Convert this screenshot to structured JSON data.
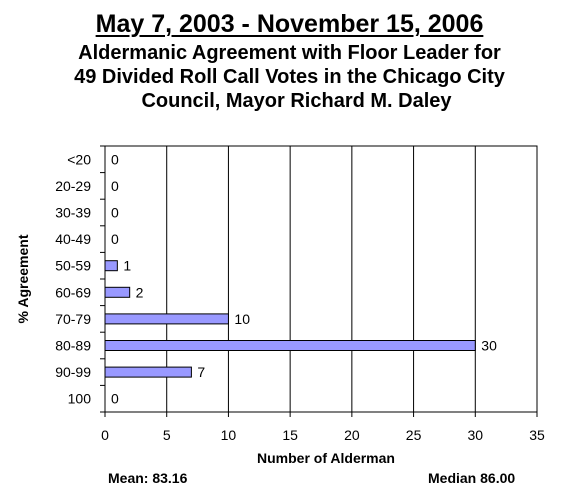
{
  "title_line1": "May 7, 2003 - November 15, 2006",
  "title_line2": "Aldermanic Agreement with Floor Leader for",
  "title_line3": "49 Divided Roll Call Votes in the Chicago City",
  "title_line4": "Council,  Mayor Richard M. Daley",
  "mean_text": "Mean: 83.16",
  "median_text": "Median 86.00",
  "chart_data": {
    "type": "bar",
    "orientation": "horizontal",
    "categories": [
      "<20",
      "20-29",
      "30-39",
      "40-49",
      "50-59",
      "60-69",
      "70-79",
      "80-89",
      "90-99",
      "100"
    ],
    "values": [
      0,
      0,
      0,
      0,
      1,
      2,
      10,
      30,
      7,
      0
    ],
    "data_labels": [
      "0",
      "0",
      "0",
      "0",
      "1",
      "2",
      "10",
      "30",
      "7",
      "0"
    ],
    "xlabel": "Number of Alderman",
    "ylabel": "% Agreement",
    "xlim": [
      0,
      35
    ],
    "xticks": [
      0,
      5,
      10,
      15,
      20,
      25,
      30,
      35
    ],
    "grid": "vertical",
    "bar_color": "#9999FF",
    "bar_edge_color": "#000000"
  }
}
